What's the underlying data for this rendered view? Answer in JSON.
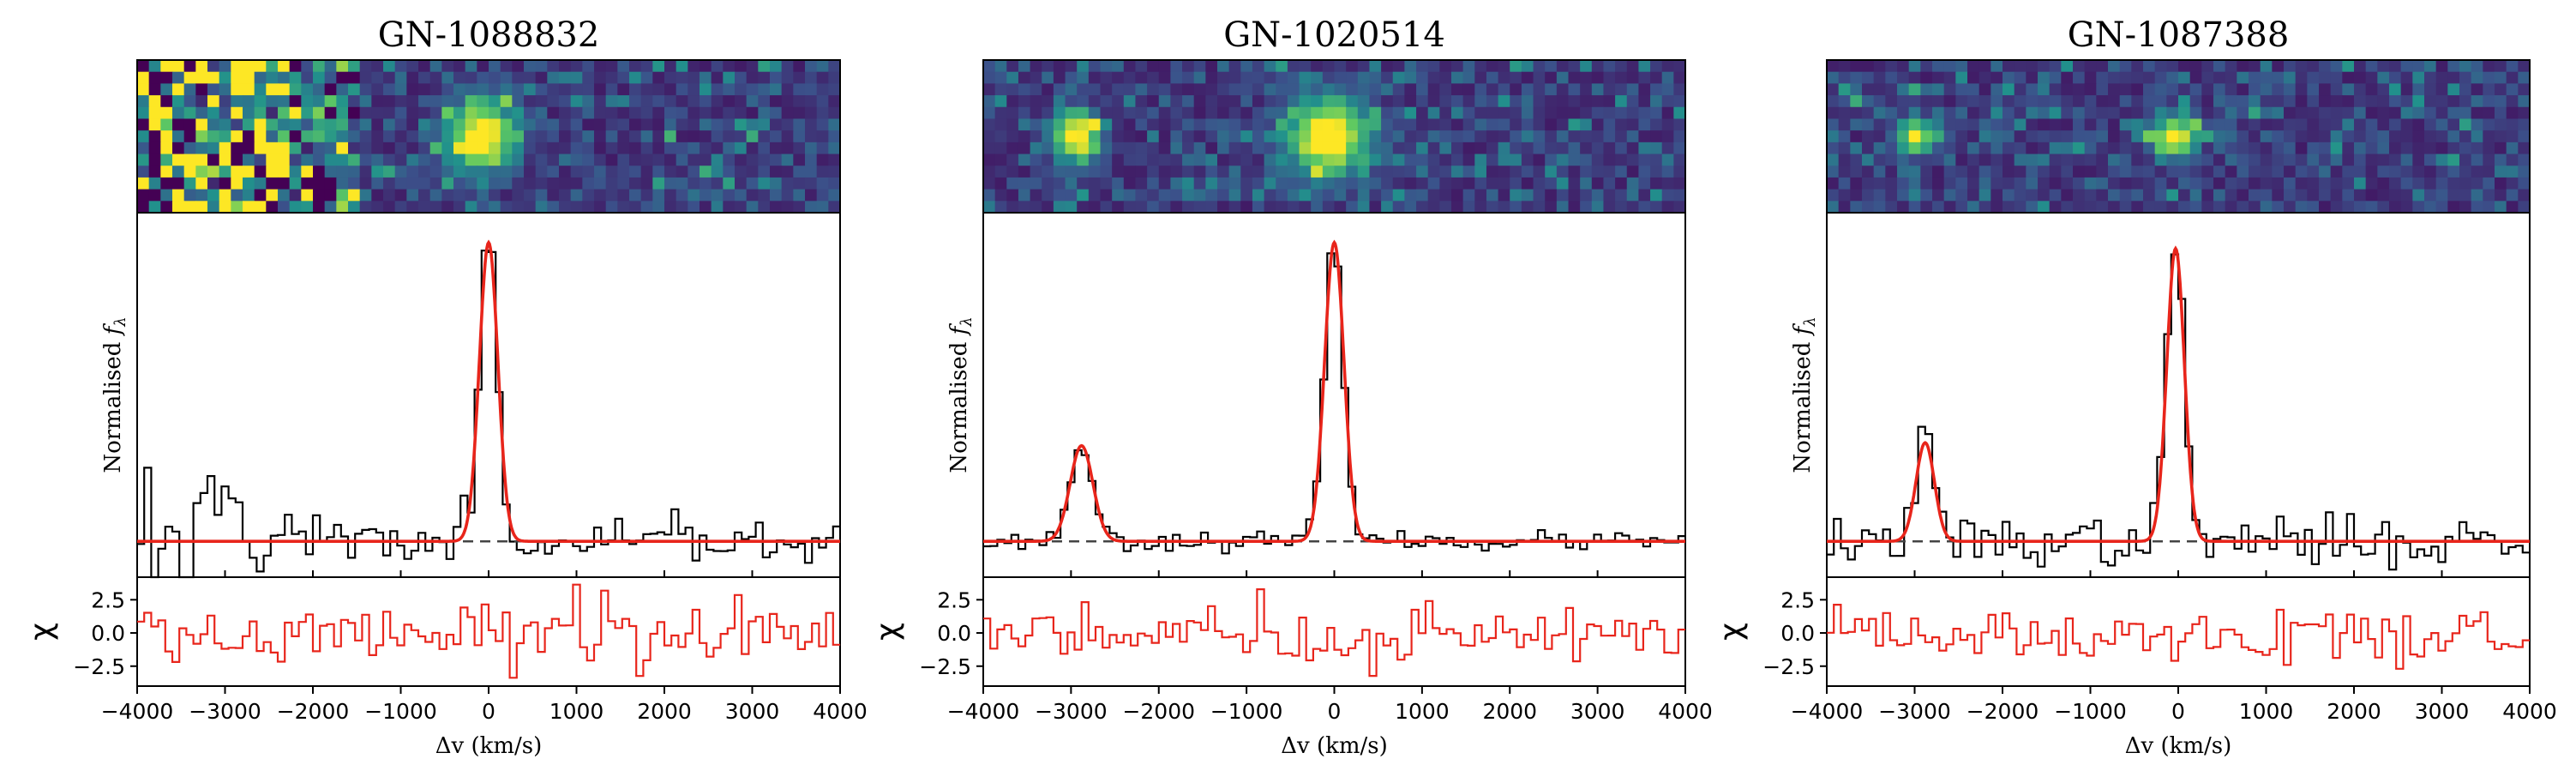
{
  "chart_data": [
    {
      "type": "line",
      "title": "GN-1088832",
      "xlabel": "Δv (km/s)",
      "ylabel": "Normalised",
      "ylabel_symbol": "f",
      "ylabel_sub": "λ",
      "resid_label": "χ",
      "xlim": [
        -4000,
        4000
      ],
      "xticks": [
        "−4000",
        "−3000",
        "−2000",
        "−1000",
        "0",
        "1000",
        "2000",
        "3000",
        "4000"
      ],
      "resid_ylim": [
        -4.0,
        4.2
      ],
      "resid_yticks": [
        "2.5",
        "0.0",
        "−2.5"
      ],
      "spectrum_ylim": [
        -0.12,
        1.1
      ],
      "series": [
        {
          "key": "spectrum",
          "values_sample": [
            0.95,
            -0.1,
            0.28,
            0.05,
            0.02,
            0.98,
            0.02
          ]
        },
        {
          "key": "model",
          "lines": [
            {
              "center": 0,
              "amp": 1.0,
              "sigma": 105
            }
          ]
        },
        {
          "key": "continuum",
          "level": 0.0
        },
        {
          "key": "chi",
          "values_sample": [
            1.2,
            -2.1,
            0.8,
            -1.0,
            1.3,
            -2.2,
            1.5
          ]
        }
      ],
      "spec_params": {
        "seed": 11,
        "noise": 0.035,
        "stepW": 80,
        "wild": {
          "from": -4000,
          "to": -1700,
          "amp": 0.55
        }
      },
      "cutout": {
        "seed": 101,
        "blobs": [
          {
            "x": 0.49,
            "y": 0.5,
            "r": 0.055,
            "v": 1.0
          }
        ],
        "left_noise": 0.45
      }
    },
    {
      "type": "line",
      "title": "GN-1020514",
      "xlabel": "Δv (km/s)",
      "ylabel": "Normalised",
      "ylabel_symbol": "f",
      "ylabel_sub": "λ",
      "resid_label": "χ",
      "xlim": [
        -4000,
        4000
      ],
      "xticks": [
        "−4000",
        "−3000",
        "−2000",
        "−1000",
        "0",
        "1000",
        "2000",
        "3000",
        "4000"
      ],
      "resid_ylim": [
        -4.0,
        4.2
      ],
      "resid_yticks": [
        "2.5",
        "0.0",
        "−2.5"
      ],
      "spectrum_ylim": [
        -0.12,
        1.1
      ],
      "series": [
        {
          "key": "spectrum",
          "values_sample": [
            0.0,
            0.34,
            0.02,
            1.0,
            0.03
          ]
        },
        {
          "key": "model",
          "lines": [
            {
              "center": -2880,
              "amp": 0.32,
              "sigma": 130
            },
            {
              "center": 0,
              "amp": 1.0,
              "sigma": 110
            }
          ]
        },
        {
          "key": "continuum",
          "level": 0.0
        },
        {
          "key": "chi",
          "values_sample": [
            0.9,
            3.6,
            -2.0,
            3.5,
            -1.4
          ]
        }
      ],
      "spec_params": {
        "seed": 23,
        "noise": 0.015,
        "stepW": 80
      },
      "cutout": {
        "seed": 202,
        "blobs": [
          {
            "x": 0.13,
            "y": 0.5,
            "r": 0.04,
            "v": 0.95
          },
          {
            "x": 0.49,
            "y": 0.5,
            "r": 0.065,
            "v": 1.0
          }
        ],
        "left_noise": 0
      }
    },
    {
      "type": "line",
      "title": "GN-1087388",
      "xlabel": "Δv (km/s)",
      "ylabel": "Normalised",
      "ylabel_symbol": "f",
      "ylabel_sub": "λ",
      "resid_label": "χ",
      "xlim": [
        -4000,
        4000
      ],
      "xticks": [
        "−4000",
        "−3000",
        "−2000",
        "−1000",
        "0",
        "1000",
        "2000",
        "3000",
        "4000"
      ],
      "resid_ylim": [
        -4.0,
        4.2
      ],
      "resid_yticks": [
        "2.5",
        "0.0",
        "−2.5"
      ],
      "spectrum_ylim": [
        -0.12,
        1.1
      ],
      "series": [
        {
          "key": "spectrum",
          "values_sample": [
            0.02,
            0.42,
            0.0,
            1.0,
            0.03,
            0.18
          ]
        },
        {
          "key": "model",
          "lines": [
            {
              "center": -2880,
              "amp": 0.33,
              "sigma": 105
            },
            {
              "center": -30,
              "amp": 0.98,
              "sigma": 100
            }
          ]
        },
        {
          "key": "continuum",
          "level": 0.0
        },
        {
          "key": "chi",
          "values_sample": [
            1.5,
            -3.4,
            1.8,
            -2.3,
            2.4,
            -1.6
          ]
        }
      ],
      "spec_params": {
        "seed": 37,
        "noise": 0.04,
        "stepW": 80
      },
      "cutout": {
        "seed": 303,
        "blobs": [
          {
            "x": 0.125,
            "y": 0.5,
            "r": 0.03,
            "v": 0.75
          },
          {
            "x": 0.495,
            "y": 0.5,
            "r": 0.035,
            "v": 0.95
          }
        ],
        "left_noise": 0
      }
    }
  ],
  "colors": {
    "spectrum": "#000000",
    "model": "#e8251b",
    "continuum": "#444444",
    "resid": "#e8251b",
    "frame": "#000000"
  }
}
